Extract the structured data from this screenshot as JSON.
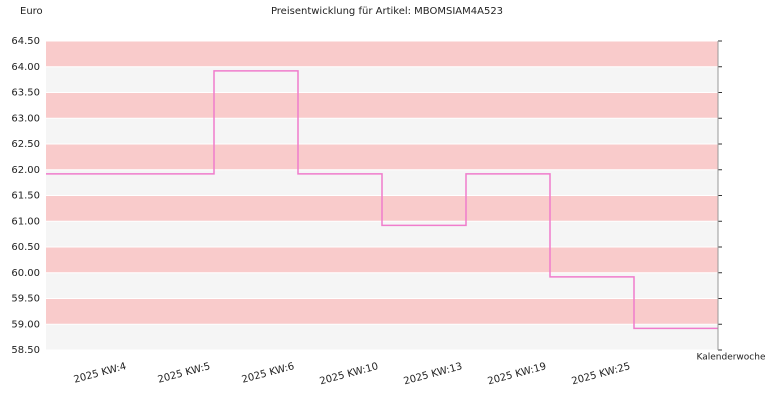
{
  "chart_data": {
    "type": "step",
    "title": "Preisentwicklung für Artikel: MBOMSIAM4A523",
    "y_label": "Euro",
    "x_label": "Kalenderwoche",
    "categories": [
      "2025 KW:4",
      "2025 KW:5",
      "2025 KW:6",
      "2025 KW:10",
      "2025 KW:13",
      "2025 KW:19",
      "2025 KW:25"
    ],
    "series": [
      {
        "color": "#f07ccc",
        "values": [
          61.92,
          63.92,
          61.92,
          60.92,
          61.92,
          59.92,
          58.92
        ]
      }
    ],
    "ylim": [
      58.5,
      64.5
    ],
    "yticks": [
      {
        "value": 58.5,
        "label": "58.50"
      },
      {
        "value": 59,
        "label": "59.00"
      },
      {
        "value": 59.5,
        "label": "59.50"
      },
      {
        "value": 60,
        "label": "60.00"
      },
      {
        "value": 60.5,
        "label": "60.50"
      },
      {
        "value": 61,
        "label": "61.00"
      },
      {
        "value": 61.5,
        "label": "61.50"
      },
      {
        "value": 62,
        "label": "62.00"
      },
      {
        "value": 62.5,
        "label": "62.50"
      },
      {
        "value": 63,
        "label": "63.00"
      },
      {
        "value": 63.5,
        "label": "63.50"
      },
      {
        "value": 64,
        "label": "64.00"
      },
      {
        "value": 64.5,
        "label": "64.50"
      }
    ],
    "band_colors": [
      "#f5f5f5",
      "#f9cbcb"
    ]
  }
}
